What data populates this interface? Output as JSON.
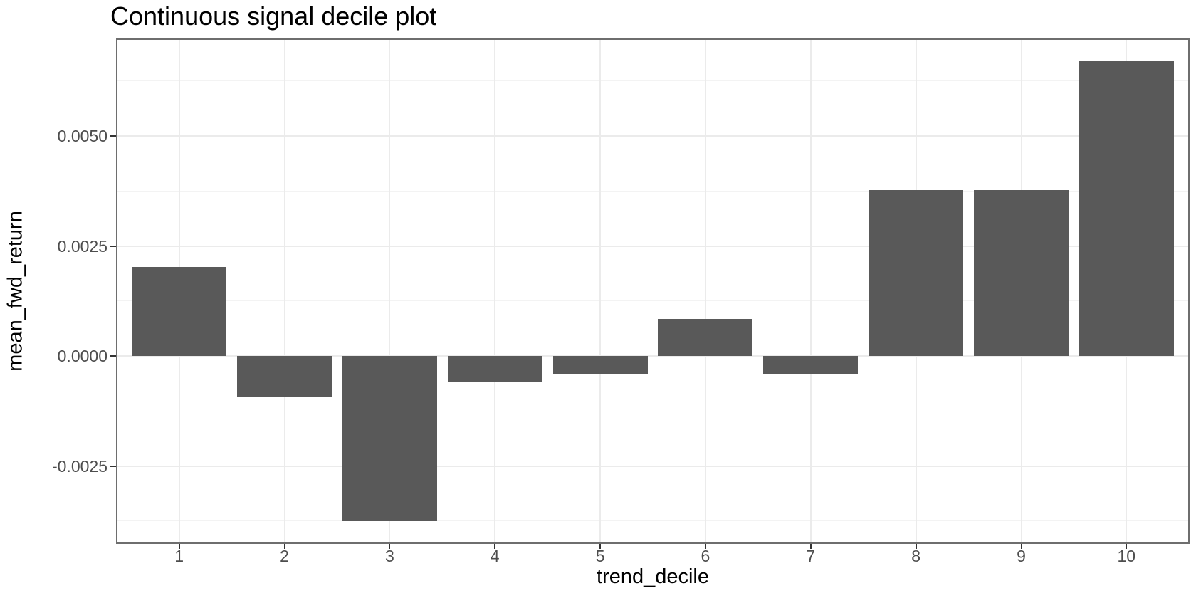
{
  "chart_data": {
    "type": "bar",
    "title": "Continuous signal decile plot",
    "xlabel": "trend_decile",
    "ylabel": "mean_fwd_return",
    "categories": [
      "1",
      "2",
      "3",
      "4",
      "5",
      "6",
      "7",
      "8",
      "9",
      "10"
    ],
    "values": [
      0.00202,
      -0.00092,
      -0.00375,
      -0.00059,
      -0.00041,
      0.00084,
      -0.00041,
      0.00378,
      0.00377,
      0.0067
    ],
    "ylim": [
      -0.00427,
      0.00722
    ],
    "y_major_ticks": [
      -0.0025,
      0.0,
      0.0025,
      0.005
    ],
    "y_tick_labels": [
      "-0.0025",
      "0.0000",
      "0.0025",
      "0.0050"
    ],
    "y_minor_ticks": [
      -0.00375,
      -0.00125,
      0.00125,
      0.00375,
      0.00625
    ],
    "bar_rel_width": 0.9,
    "grid": "horizontal major+minor, vertical major only",
    "legend": "none",
    "colors": {
      "bar": "#595959",
      "grid_major": "#ebebeb",
      "grid_minor": "#f3f3f3",
      "panel_border": "#6e6e6e",
      "panel_background": "#ffffff",
      "figure_background": "#ffffff",
      "tick_mark": "#333333",
      "tick_label": "#4d4d4d",
      "title_text": "#000000",
      "axis_title_text": "#000000"
    }
  }
}
